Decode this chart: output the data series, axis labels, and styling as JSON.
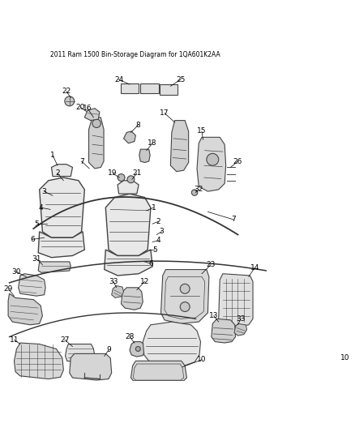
{
  "title": "2011 Ram 1500 Bin-Storage Diagram for 1QA601K2AA",
  "background_color": "#ffffff",
  "fig_width": 4.38,
  "fig_height": 5.33,
  "dpi": 100
}
